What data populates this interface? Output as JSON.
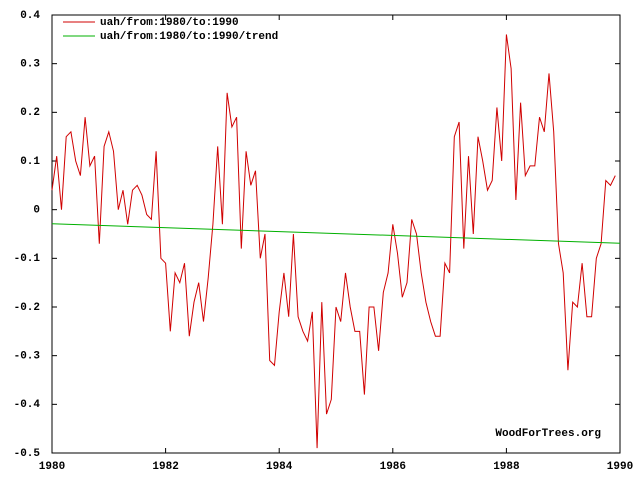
{
  "chart_data": {
    "type": "line",
    "annotations": [
      "WoodForTrees.org"
    ],
    "xlim": [
      1980,
      1990
    ],
    "xticks": [
      1980,
      1982,
      1984,
      1986,
      1988,
      1990
    ],
    "ylim": [
      -0.5,
      0.4
    ],
    "yticks": [
      0.4,
      0.3,
      0.2,
      0.1,
      0,
      -0.1,
      -0.2,
      -0.3,
      -0.4,
      -0.5
    ],
    "legend": "upper-left",
    "series": [
      {
        "name": "uah/from:1980/to:1990",
        "color": "#d00000",
        "x": [
          1980,
          1980.083,
          1980.167,
          1980.25,
          1980.333,
          1980.417,
          1980.5,
          1980.583,
          1980.667,
          1980.75,
          1980.833,
          1980.917,
          1981,
          1981.083,
          1981.167,
          1981.25,
          1981.333,
          1981.417,
          1981.5,
          1981.583,
          1981.667,
          1981.75,
          1981.833,
          1981.917,
          1982,
          1982.083,
          1982.167,
          1982.25,
          1982.333,
          1982.417,
          1982.5,
          1982.583,
          1982.667,
          1982.75,
          1982.833,
          1982.917,
          1983,
          1983.083,
          1983.167,
          1983.25,
          1983.333,
          1983.417,
          1983.5,
          1983.583,
          1983.667,
          1983.75,
          1983.833,
          1983.917,
          1984,
          1984.083,
          1984.167,
          1984.25,
          1984.333,
          1984.417,
          1984.5,
          1984.583,
          1984.667,
          1984.75,
          1984.833,
          1984.917,
          1985,
          1985.083,
          1985.167,
          1985.25,
          1985.333,
          1985.417,
          1985.5,
          1985.583,
          1985.667,
          1985.75,
          1985.833,
          1985.917,
          1986,
          1986.083,
          1986.167,
          1986.25,
          1986.333,
          1986.417,
          1986.5,
          1986.583,
          1986.667,
          1986.75,
          1986.833,
          1986.917,
          1987,
          1987.083,
          1987.167,
          1987.25,
          1987.333,
          1987.417,
          1987.5,
          1987.583,
          1987.667,
          1987.75,
          1987.833,
          1987.917,
          1988,
          1988.083,
          1988.167,
          1988.25,
          1988.333,
          1988.417,
          1988.5,
          1988.583,
          1988.667,
          1988.75,
          1988.833,
          1988.917,
          1989,
          1989.083,
          1989.167,
          1989.25,
          1989.333,
          1989.417,
          1989.5,
          1989.583,
          1989.667,
          1989.75,
          1989.833,
          1989.917
        ],
        "values": [
          0.04,
          0.11,
          0.0,
          0.15,
          0.16,
          0.1,
          0.07,
          0.19,
          0.09,
          0.11,
          -0.07,
          0.13,
          0.16,
          0.12,
          0.0,
          0.04,
          -0.03,
          0.04,
          0.05,
          0.03,
          -0.01,
          -0.02,
          0.12,
          -0.1,
          -0.11,
          -0.25,
          -0.13,
          -0.15,
          -0.11,
          -0.26,
          -0.19,
          -0.15,
          -0.23,
          -0.14,
          -0.03,
          0.13,
          -0.03,
          0.24,
          0.17,
          0.19,
          -0.08,
          0.12,
          0.05,
          0.08,
          -0.1,
          -0.05,
          -0.31,
          -0.32,
          -0.21,
          -0.13,
          -0.22,
          -0.05,
          -0.22,
          -0.25,
          -0.27,
          -0.21,
          -0.49,
          -0.19,
          -0.42,
          -0.39,
          -0.2,
          -0.23,
          -0.13,
          -0.2,
          -0.25,
          -0.25,
          -0.38,
          -0.2,
          -0.2,
          -0.29,
          -0.17,
          -0.13,
          -0.03,
          -0.09,
          -0.18,
          -0.15,
          -0.02,
          -0.05,
          -0.13,
          -0.19,
          -0.23,
          -0.26,
          -0.26,
          -0.11,
          -0.13,
          0.15,
          0.18,
          -0.08,
          0.11,
          -0.05,
          0.15,
          0.1,
          0.04,
          0.06,
          0.21,
          0.1,
          0.36,
          0.29,
          0.02,
          0.22,
          0.07,
          0.09,
          0.09,
          0.19,
          0.16,
          0.28,
          0.16,
          -0.07,
          -0.13,
          -0.33,
          -0.19,
          -0.2,
          -0.11,
          -0.22,
          -0.22,
          -0.1,
          -0.07,
          0.06,
          0.05,
          0.07
        ]
      },
      {
        "name": "uah/from:1980/to:1990/trend",
        "color": "#00b000",
        "x": [
          1980,
          1990
        ],
        "values": [
          -0.029,
          -0.069
        ]
      }
    ]
  }
}
